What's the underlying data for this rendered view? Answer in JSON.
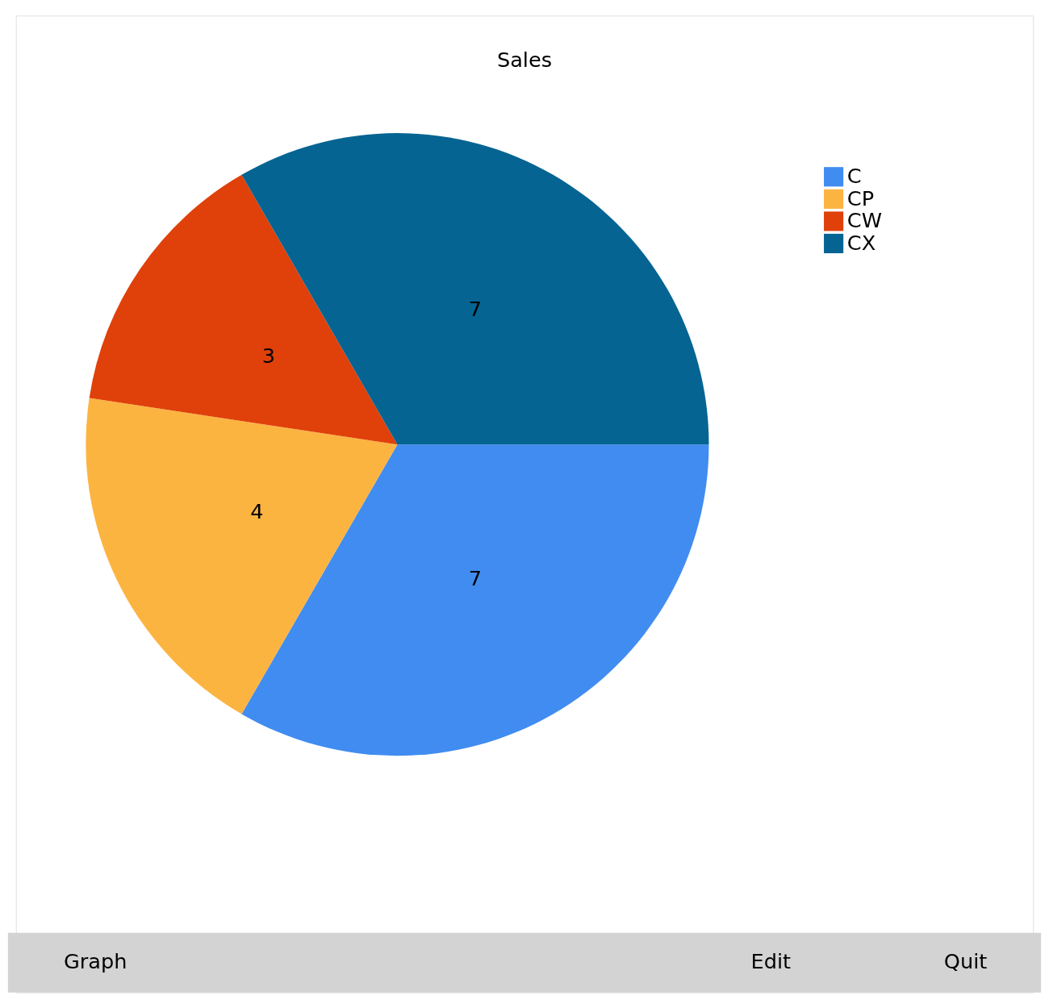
{
  "chart_data": {
    "type": "pie",
    "title": "Sales",
    "categories": [
      "C",
      "CP",
      "CW",
      "CX"
    ],
    "values": [
      7,
      4,
      3,
      7
    ],
    "colors": [
      "#418cf0",
      "#fcb441",
      "#e0400a",
      "#056492"
    ],
    "data_labels": true,
    "legend": "top right",
    "annotations": [
      "Graph",
      "Edit",
      "Quit"
    ]
  }
}
